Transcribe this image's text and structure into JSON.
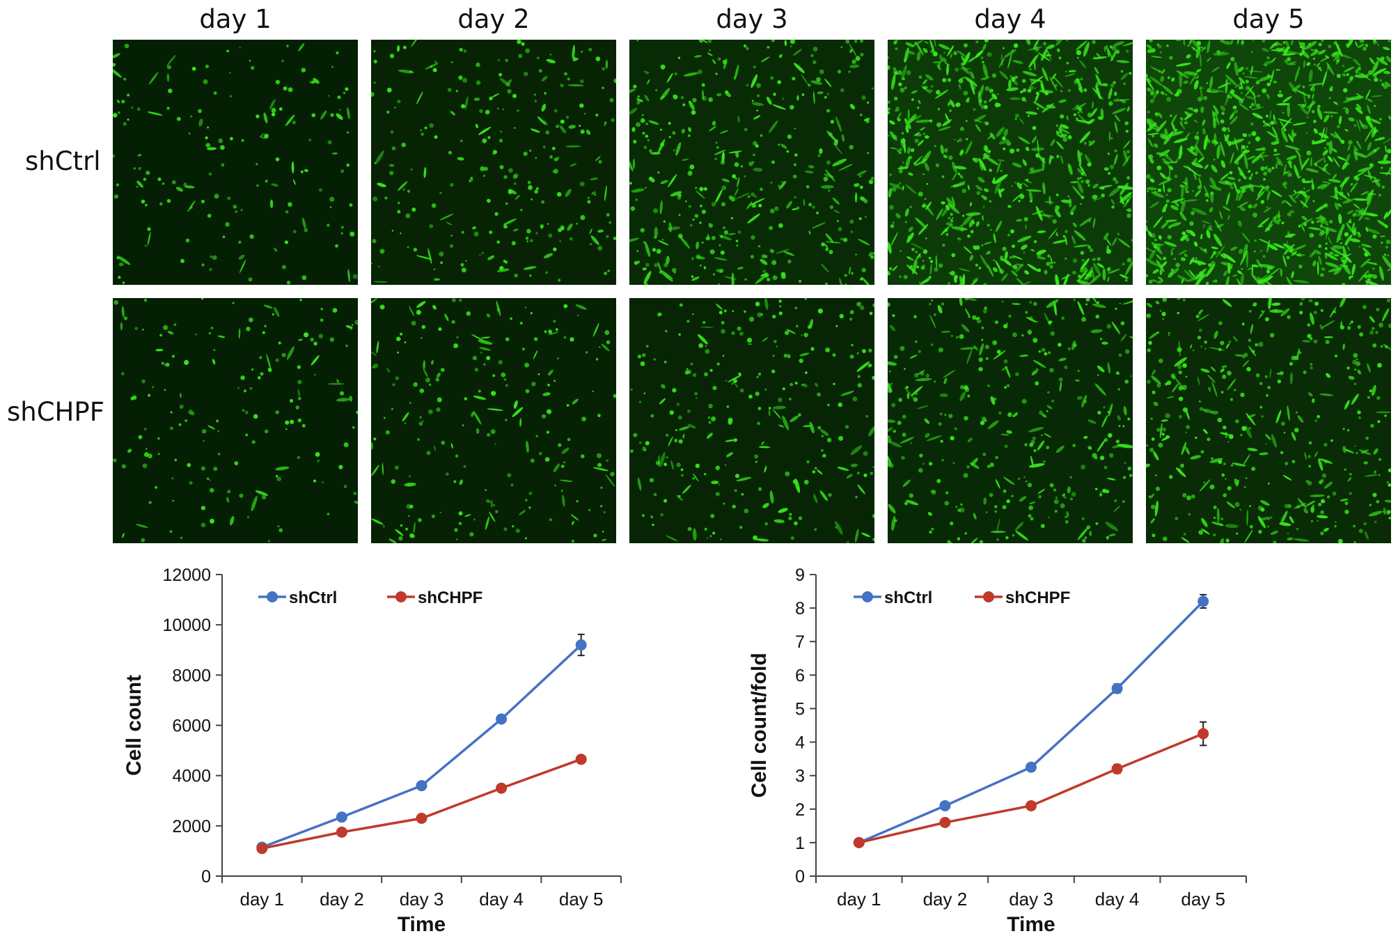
{
  "micrographs": {
    "columns": [
      "day 1",
      "day 2",
      "day 3",
      "day 4",
      "day 5"
    ],
    "rows": [
      "shCtrl",
      "shCHPF"
    ],
    "fluorescence_color": "#36e51c",
    "background_color": "#051a04",
    "signal_levels": [
      [
        0.12,
        0.22,
        0.38,
        0.75,
        1.0
      ],
      [
        0.12,
        0.18,
        0.24,
        0.33,
        0.4
      ]
    ]
  },
  "chart_data": [
    {
      "type": "line",
      "title": "",
      "xlabel": "Time",
      "ylabel": "Cell count",
      "categories": [
        "day 1",
        "day 2",
        "day 3",
        "day 4",
        "day 5"
      ],
      "ylim": [
        0,
        12000
      ],
      "yticks": [
        0,
        2000,
        4000,
        6000,
        8000,
        10000,
        12000
      ],
      "legend_position": "top-left",
      "grid": false,
      "series": [
        {
          "name": "shCtrl",
          "color": "#4472c4",
          "values": [
            1150,
            2350,
            3600,
            6250,
            9200
          ],
          "errors": [
            60,
            80,
            100,
            120,
            420
          ]
        },
        {
          "name": "shCHPF",
          "color": "#c0392b",
          "values": [
            1100,
            1750,
            2300,
            3500,
            4650
          ],
          "errors": [
            60,
            60,
            70,
            100,
            120
          ]
        }
      ]
    },
    {
      "type": "line",
      "title": "",
      "xlabel": "Time",
      "ylabel": "Cell count/fold",
      "categories": [
        "day 1",
        "day 2",
        "day 3",
        "day 4",
        "day 5"
      ],
      "ylim": [
        0,
        9
      ],
      "yticks": [
        0,
        1,
        2,
        3,
        4,
        5,
        6,
        7,
        8,
        9
      ],
      "legend_position": "top-left",
      "grid": false,
      "series": [
        {
          "name": "shCtrl",
          "color": "#4472c4",
          "values": [
            1.0,
            2.1,
            3.25,
            5.6,
            8.2
          ],
          "errors": [
            0.05,
            0.07,
            0.08,
            0.13,
            0.2
          ]
        },
        {
          "name": "shCHPF",
          "color": "#c0392b",
          "values": [
            1.0,
            1.6,
            2.1,
            3.2,
            4.25
          ],
          "errors": [
            0.05,
            0.06,
            0.07,
            0.13,
            0.35
          ]
        }
      ]
    }
  ]
}
